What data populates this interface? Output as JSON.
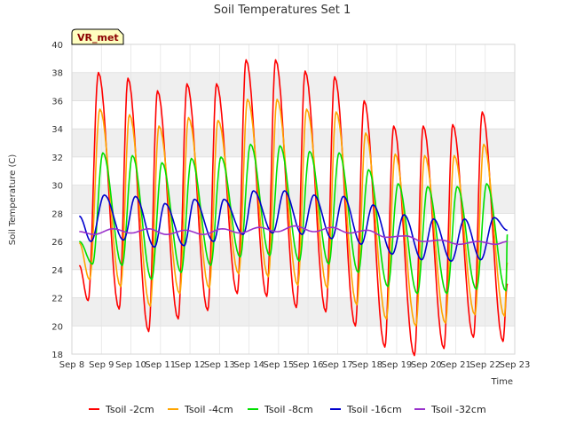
{
  "chart_data": {
    "type": "line",
    "title": "Soil Temperatures Set 1",
    "xlabel": "Time",
    "ylabel": "Soil Temperature (C)",
    "badge": "VR_met",
    "ylim": [
      18,
      40
    ],
    "yticks": [
      18,
      20,
      22,
      24,
      26,
      28,
      30,
      32,
      34,
      36,
      38,
      40
    ],
    "xlim": [
      8,
      23
    ],
    "xticks": [
      8,
      9,
      10,
      11,
      12,
      13,
      14,
      15,
      16,
      17,
      18,
      19,
      20,
      21,
      22,
      23
    ],
    "xtick_labels": [
      "Sep 8",
      "Sep 9",
      "Sep 10",
      "Sep 11",
      "Sep 12",
      "Sep 13",
      "Sep 14",
      "Sep 15",
      "Sep 16",
      "Sep 17",
      "Sep 18",
      "Sep 19",
      "Sep 20",
      "Sep 21",
      "Sep 22",
      "Sep 23"
    ],
    "grid": true,
    "legend_position": "bottom",
    "series": [
      {
        "name": "Tsoil -2cm",
        "color": "#ff0000",
        "x": [
          8.25,
          8.55,
          8.9,
          9.6,
          9.9,
          10.6,
          10.9,
          11.6,
          11.9,
          12.6,
          12.9,
          13.6,
          13.9,
          14.6,
          14.9,
          15.6,
          15.9,
          16.6,
          16.9,
          17.6,
          17.9,
          18.6,
          18.9,
          19.6,
          19.9,
          20.6,
          20.9,
          21.6,
          21.9,
          22.6,
          22.75
        ],
        "y": [
          24.3,
          21.8,
          38.0,
          21.2,
          37.6,
          19.6,
          36.7,
          20.5,
          37.2,
          21.1,
          37.2,
          22.3,
          38.9,
          22.1,
          38.9,
          21.3,
          38.1,
          21.0,
          37.7,
          20.0,
          36.0,
          18.5,
          34.2,
          17.9,
          34.2,
          18.4,
          34.3,
          19.2,
          35.2,
          18.9,
          23.0
        ]
      },
      {
        "name": "Tsoil -4cm",
        "color": "#ffa500",
        "x": [
          8.25,
          8.6,
          8.95,
          9.65,
          9.95,
          10.65,
          10.95,
          11.65,
          11.95,
          12.65,
          12.95,
          13.65,
          13.95,
          14.65,
          14.95,
          15.65,
          15.95,
          16.65,
          16.95,
          17.65,
          17.95,
          18.65,
          18.95,
          19.65,
          19.95,
          20.65,
          20.95,
          21.65,
          21.95,
          22.65,
          22.75
        ],
        "y": [
          25.9,
          23.3,
          35.4,
          22.8,
          35.0,
          21.4,
          34.2,
          22.3,
          34.8,
          22.7,
          34.6,
          23.7,
          36.1,
          23.5,
          36.1,
          22.9,
          35.4,
          22.7,
          35.2,
          21.5,
          33.7,
          20.5,
          32.2,
          20.0,
          32.1,
          20.2,
          32.1,
          20.8,
          32.9,
          20.7,
          24.5
        ]
      },
      {
        "name": "Tsoil -8cm",
        "color": "#00e000",
        "x": [
          8.25,
          8.7,
          9.05,
          9.7,
          10.05,
          10.7,
          11.05,
          11.7,
          12.05,
          12.7,
          13.05,
          13.7,
          14.05,
          14.7,
          15.05,
          15.7,
          16.05,
          16.7,
          17.05,
          17.7,
          18.05,
          18.7,
          19.05,
          19.7,
          20.05,
          20.7,
          21.05,
          21.7,
          22.05,
          22.7,
          22.75
        ],
        "y": [
          26.0,
          24.4,
          32.3,
          24.3,
          32.1,
          23.3,
          31.6,
          23.8,
          31.9,
          24.3,
          32.0,
          24.9,
          32.9,
          25.0,
          32.8,
          24.6,
          32.4,
          24.4,
          32.3,
          23.8,
          31.1,
          22.8,
          30.1,
          22.3,
          29.9,
          22.3,
          29.9,
          22.6,
          30.1,
          22.5,
          26.5
        ]
      },
      {
        "name": "Tsoil -16cm",
        "color": "#0000cd",
        "x": [
          8.25,
          8.65,
          9.1,
          9.75,
          10.15,
          10.8,
          11.15,
          11.8,
          12.15,
          12.8,
          13.15,
          13.8,
          14.15,
          14.8,
          15.2,
          15.8,
          16.2,
          16.8,
          17.2,
          17.8,
          18.2,
          18.85,
          19.25,
          19.85,
          20.25,
          20.85,
          21.3,
          21.85,
          22.3,
          22.75
        ],
        "y": [
          27.8,
          26.0,
          29.3,
          26.1,
          29.2,
          25.6,
          28.7,
          25.7,
          29.0,
          26.0,
          29.0,
          26.5,
          29.6,
          26.6,
          29.6,
          26.5,
          29.3,
          26.2,
          29.2,
          25.8,
          28.6,
          25.1,
          27.9,
          24.7,
          27.6,
          24.6,
          27.6,
          24.7,
          27.7,
          26.8
        ]
      },
      {
        "name": "Tsoil -32cm",
        "color": "#9932cc",
        "x": [
          8.25,
          8.75,
          9.4,
          10.0,
          10.6,
          11.2,
          11.85,
          12.45,
          13.1,
          13.7,
          14.35,
          14.95,
          15.55,
          16.2,
          16.8,
          17.4,
          18.0,
          18.65,
          19.3,
          19.9,
          20.5,
          21.1,
          21.75,
          22.35,
          22.75
        ],
        "y": [
          26.7,
          26.5,
          26.9,
          26.6,
          26.9,
          26.5,
          26.8,
          26.5,
          26.9,
          26.6,
          27.0,
          26.7,
          27.1,
          26.7,
          27.0,
          26.6,
          26.8,
          26.3,
          26.4,
          26.0,
          26.1,
          25.8,
          26.0,
          25.8,
          26.0
        ]
      }
    ]
  }
}
